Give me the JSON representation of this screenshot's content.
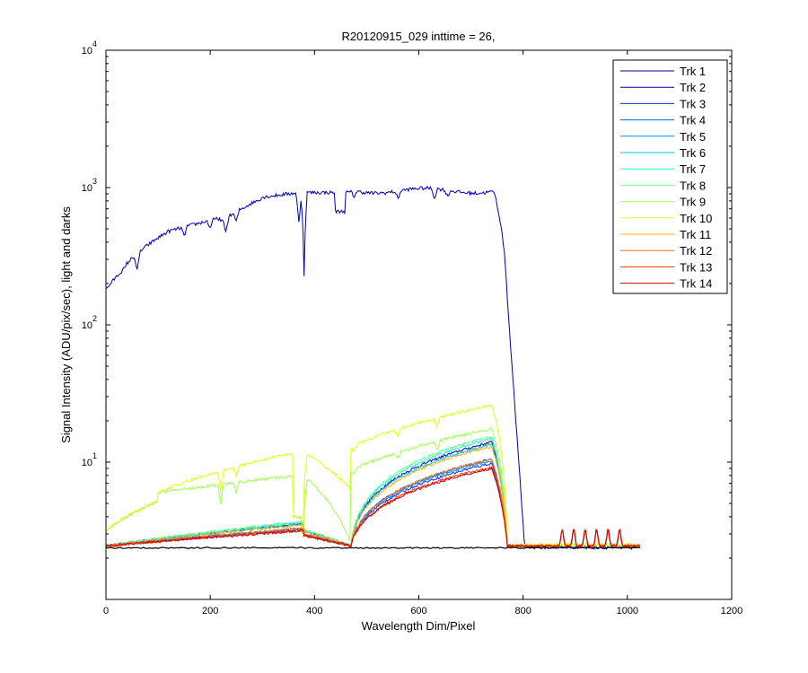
{
  "chart_data": {
    "type": "line",
    "title": "R20120915_029 inttime = 26,",
    "xlabel": "Wavelength Dim/Pixel",
    "ylabel": "Signal Intensity (ADU/pix/sec), light and darks",
    "xlim": [
      0,
      1200
    ],
    "ylim": [
      1,
      10000
    ],
    "yscale": "log",
    "x_ticks": [
      0,
      200,
      400,
      600,
      800,
      1000,
      1200
    ],
    "y_ticks": [
      1,
      10,
      100,
      1000,
      10000
    ],
    "y_tick_labels": [
      {
        "base": "10",
        "exp": "1"
      },
      {
        "base": "10",
        "exp": "2"
      },
      {
        "base": "10",
        "exp": "3"
      },
      {
        "base": "10",
        "exp": "4"
      }
    ],
    "legend_position": "top-right",
    "series": [
      {
        "name": "Trk 1",
        "color": "#00008f",
        "peak": 14,
        "kind": "lite"
      },
      {
        "name": "Trk 2",
        "color": "#0000af",
        "peak": 1000,
        "kind": "bright"
      },
      {
        "name": "Trk 3",
        "color": "#0030ff",
        "peak": 9.8,
        "kind": "lite"
      },
      {
        "name": "Trk 4",
        "color": "#0060ff",
        "peak": 10.5,
        "kind": "lite"
      },
      {
        "name": "Trk 5",
        "color": "#0090ff",
        "peak": 10.2,
        "kind": "lite"
      },
      {
        "name": "Trk 6",
        "color": "#00c0ff",
        "peak": 13.5,
        "kind": "lite"
      },
      {
        "name": "Trk 7",
        "color": "#20f0e0",
        "peak": 14.8,
        "kind": "lite"
      },
      {
        "name": "Trk 8",
        "color": "#60ff90",
        "peak": 15.5,
        "kind": "lite"
      },
      {
        "name": "Trk 9",
        "color": "#a0ff50",
        "peak": 22,
        "kind": "upper"
      },
      {
        "name": "Trk 10",
        "color": "#e0ff10",
        "peak": 26,
        "kind": "upper"
      },
      {
        "name": "Trk 11",
        "color": "#ffb000",
        "peak": 13,
        "kind": "lite"
      },
      {
        "name": "Trk 12",
        "color": "#ff7000",
        "peak": 10.5,
        "kind": "lite"
      },
      {
        "name": "Trk 13",
        "color": "#ff3000",
        "peak": 9.2,
        "kind": "lite"
      },
      {
        "name": "Trk 14",
        "color": "#d00000",
        "peak": 9.0,
        "kind": "lite"
      }
    ],
    "grid": false
  }
}
